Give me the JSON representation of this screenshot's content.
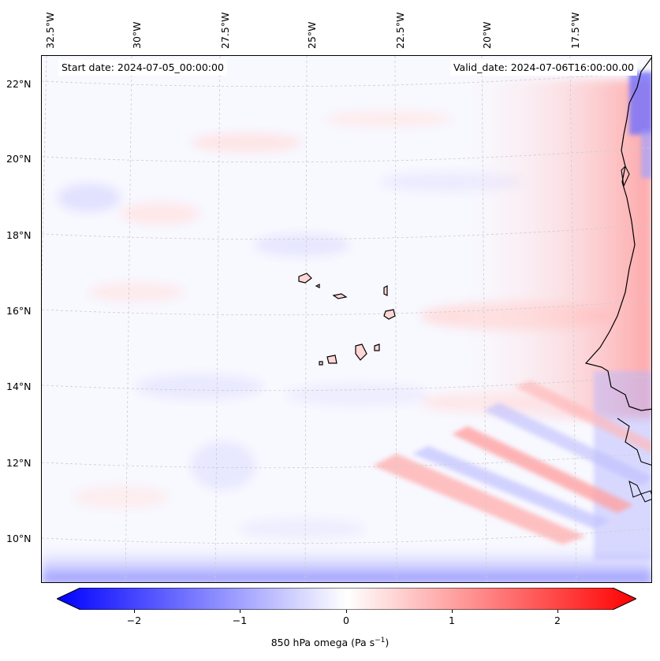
{
  "header": {
    "start_date": "Start date: 2024-07-05_00:00:00",
    "valid_date": "Valid_date: 2024-07-06T16:00:00.00"
  },
  "longitude_labels": [
    "32.5°W",
    "30°W",
    "27.5°W",
    "25°W",
    "22.5°W",
    "20°W",
    "17.5°W"
  ],
  "latitude_labels": [
    "22°N",
    "20°N",
    "18°N",
    "16°N",
    "14°N",
    "12°N",
    "10°N"
  ],
  "colorbar": {
    "label_text": "850 hPa omega (Pa s",
    "label_sup": "−1",
    "label_close": ")",
    "ticks": [
      "−2",
      "−1",
      "0",
      "1",
      "2"
    ],
    "min": -2.6,
    "max": 2.6,
    "colormap": "bwr",
    "low_color": "#0000ff",
    "mid_color": "#ffffff",
    "high_color": "#ff0000"
  },
  "map": {
    "ocean_color": "#f8f8ff",
    "coastline_color": "#000000",
    "gridline_color": "#cccccc"
  }
}
